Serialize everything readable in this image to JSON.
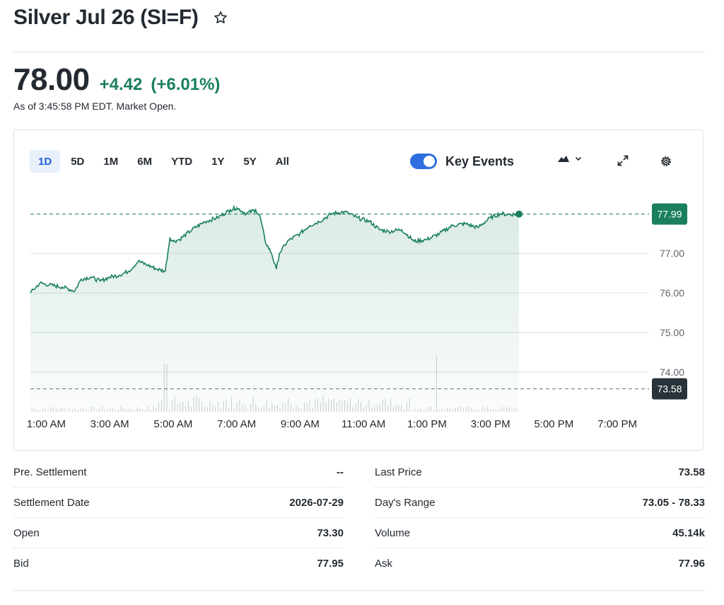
{
  "header": {
    "title": "Silver Jul 26 (SI=F)"
  },
  "quote": {
    "price": "78.00",
    "change": "+4.42",
    "change_pct": "(+6.01%)",
    "as_of": "As of 3:45:58 PM EDT. Market Open."
  },
  "range_tabs": [
    "1D",
    "5D",
    "1M",
    "6M",
    "YTD",
    "1Y",
    "5Y",
    "All"
  ],
  "active_range": "1D",
  "key_events": {
    "label": "Key Events",
    "enabled": true
  },
  "colors": {
    "up": "#1a7f5f",
    "line": "#1a7f5f",
    "accent": "#2d6fe0",
    "prev_close_label_bg": "#283238"
  },
  "chart_data": {
    "type": "area",
    "x_tick_labels": [
      "1:00 AM",
      "3:00 AM",
      "5:00 AM",
      "7:00 AM",
      "9:00 AM",
      "11:00 AM",
      "1:00 PM",
      "3:00 PM",
      "5:00 PM",
      "7:00 PM"
    ],
    "y_tick_labels": [
      "77.00",
      "76.00",
      "75.00",
      "74.00"
    ],
    "ylim": [
      73.0,
      78.5
    ],
    "xlim_hours": [
      0.5,
      20.0
    ],
    "current_value_label": "77.99",
    "prev_close_label": "73.58",
    "current_value": 77.99,
    "prev_close": 73.58,
    "grid": true,
    "series": [
      {
        "x_hours": [
          0.5,
          0.8,
          1.1,
          1.5,
          1.9,
          2.1,
          2.4,
          2.7,
          3.0,
          3.3,
          3.6,
          3.9,
          4.2,
          4.5,
          4.75,
          4.9,
          5.0,
          5.2,
          5.6,
          6.0,
          6.4,
          6.8,
          7.0,
          7.3,
          7.6,
          7.75,
          7.9,
          8.1,
          8.25,
          8.35,
          8.6,
          9.0,
          9.3,
          9.6,
          10.0,
          10.4,
          10.8,
          11.2,
          11.5,
          11.8,
          12.2,
          12.6,
          13.0,
          13.4,
          13.8,
          14.2,
          14.6,
          15.0,
          15.3,
          15.6,
          15.9
        ],
        "y": [
          76.0,
          76.25,
          76.2,
          76.15,
          76.05,
          76.35,
          76.4,
          76.3,
          76.4,
          76.45,
          76.55,
          76.8,
          76.7,
          76.6,
          76.55,
          77.4,
          77.3,
          77.35,
          77.6,
          77.8,
          77.9,
          78.1,
          78.15,
          78.0,
          78.1,
          77.9,
          77.3,
          77.0,
          76.6,
          77.0,
          77.3,
          77.5,
          77.7,
          77.8,
          78.0,
          78.05,
          77.9,
          77.8,
          77.6,
          77.55,
          77.6,
          77.3,
          77.35,
          77.5,
          77.7,
          77.75,
          77.65,
          77.9,
          78.0,
          77.98,
          77.99
        ]
      }
    ]
  },
  "stats": {
    "left": [
      {
        "label": "Pre. Settlement",
        "value": "--"
      },
      {
        "label": "Settlement Date",
        "value": "2026-07-29"
      },
      {
        "label": "Open",
        "value": "73.30"
      },
      {
        "label": "Bid",
        "value": "77.95"
      }
    ],
    "right": [
      {
        "label": "Last Price",
        "value": "73.58"
      },
      {
        "label": "Day's Range",
        "value": "73.05 - 78.33"
      },
      {
        "label": "Volume",
        "value": "45.14k"
      },
      {
        "label": "Ask",
        "value": "77.96"
      }
    ]
  }
}
